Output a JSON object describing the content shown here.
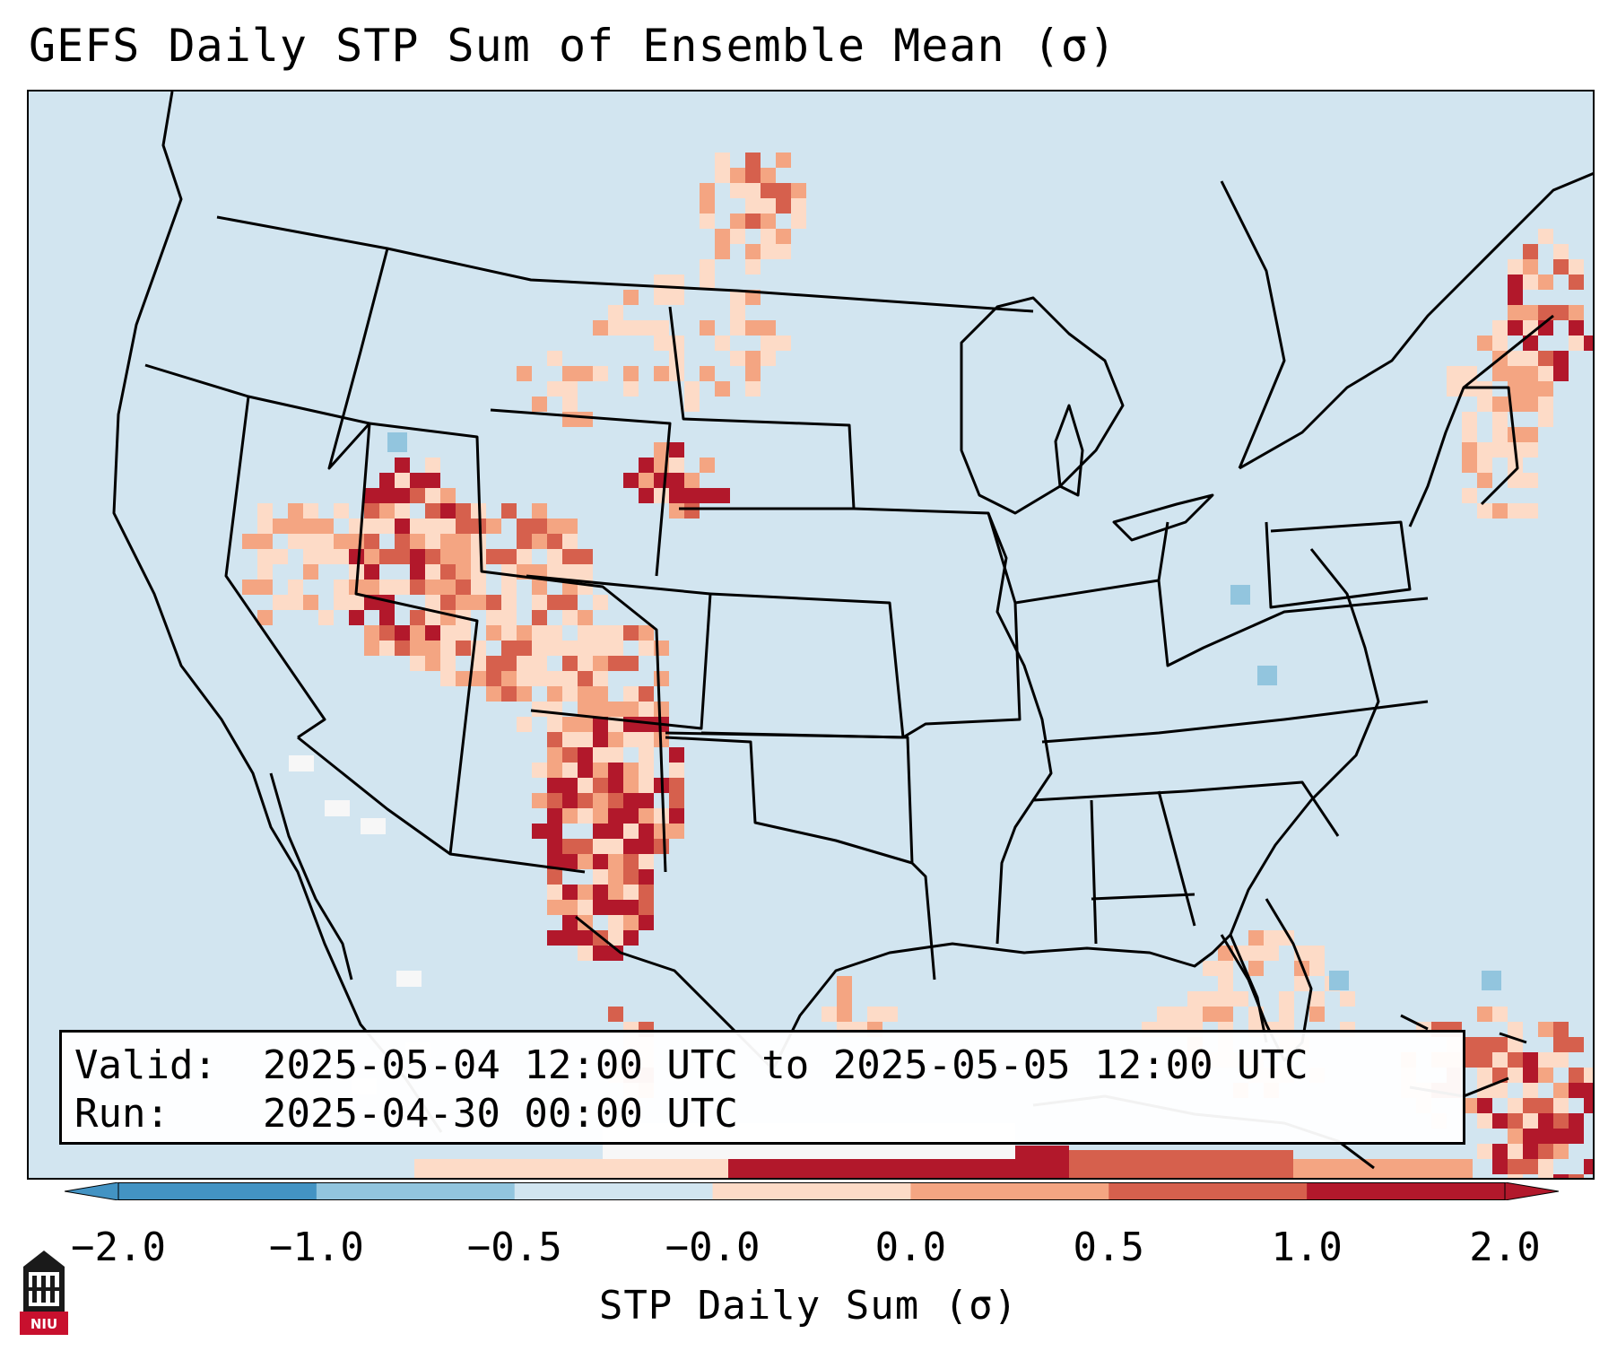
{
  "title": "GEFS Daily STP Sum of Ensemble Mean (σ)",
  "info": {
    "valid_label": "Valid:",
    "valid_value": "2025-05-04 12:00 UTC to 2025-05-05 12:00 UTC",
    "run_label": "Run:",
    "run_value": "2025-04-30 00:00 UTC"
  },
  "colorbar": {
    "label": "STP Daily Sum (σ)",
    "ticks": [
      "−2.0",
      "−1.0",
      "−0.5",
      "−0.0",
      "0.0",
      "0.5",
      "1.0",
      "2.0"
    ],
    "colors": [
      "#4393c3",
      "#92c5de",
      "#d1e5f0",
      "#f7f7f7",
      "#fddbc7",
      "#f4a582",
      "#d6604d",
      "#b2182b"
    ],
    "extend": "both"
  },
  "map_colors": {
    "ocean_land_base": "#d2e5f0",
    "strong_positive": "#b2182b",
    "moderate_positive": "#d6604d",
    "weak_positive": "#f4a582",
    "slight_positive": "#fddbc7",
    "near_zero": "#f7f7f7",
    "slight_negative": "#92c5de"
  },
  "logo": {
    "text": "NIU",
    "icon": "niu-tower-logo-icon"
  }
}
